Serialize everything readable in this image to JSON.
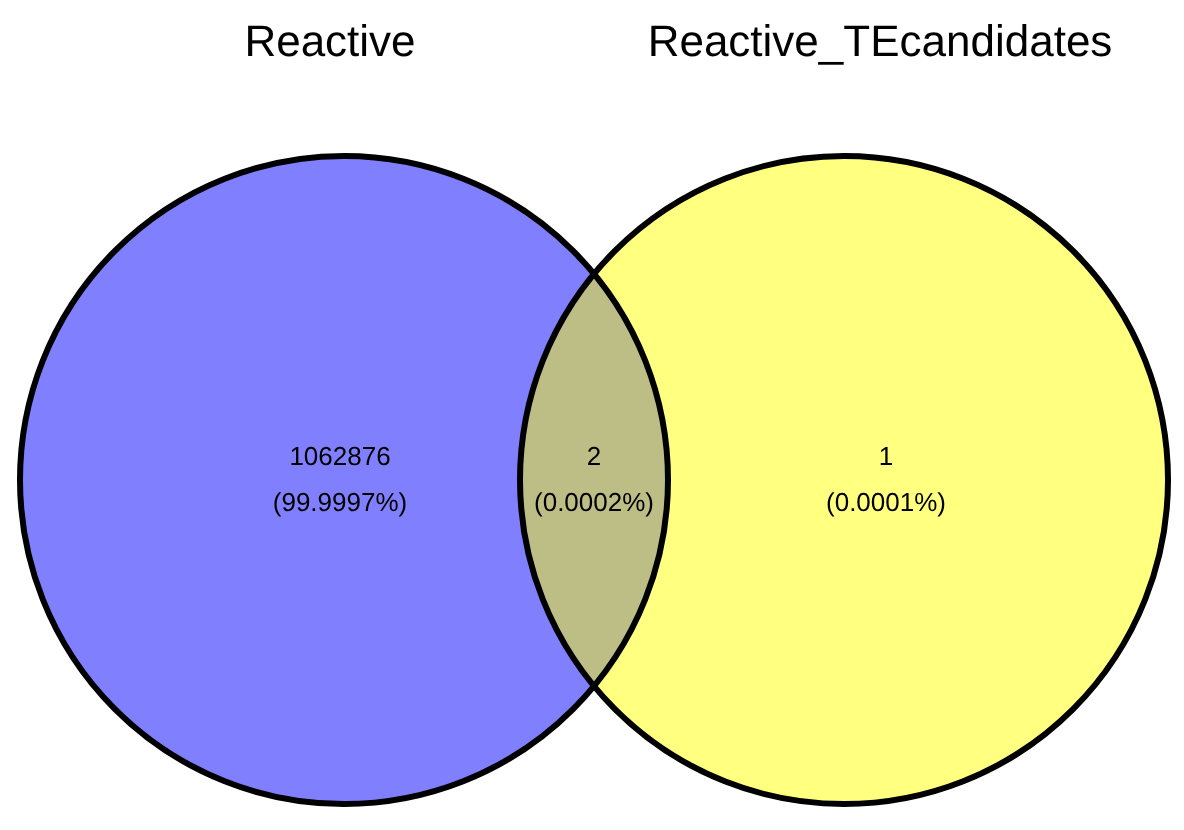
{
  "chart_data": {
    "type": "other",
    "annotations": [
      "Reactive",
      "Reactive_TEcandidates",
      "(99.9997%)",
      "(0.0002%)",
      "(0.0001%)"
    ],
    "categories": [
      null,
      null,
      null
    ],
    "values": [
      1062876,
      2,
      1
    ],
    "data_labels": true,
    "colors": [
      "#8080ff",
      "#bdbd86",
      "#ffff80"
    ]
  }
}
